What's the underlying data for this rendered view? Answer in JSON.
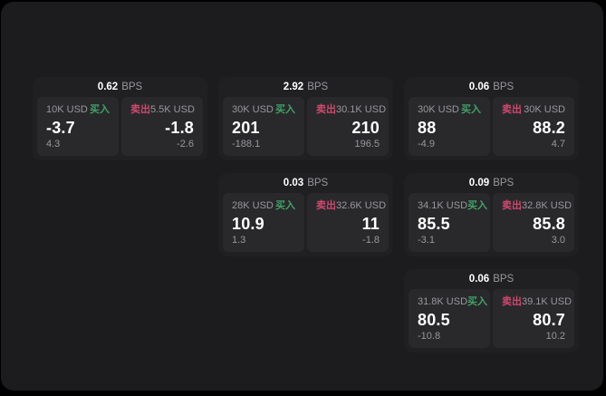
{
  "theme": {
    "outer_bg": "#000000",
    "page_bg": "#1c1c1e",
    "card_bg": "#202022",
    "panel_bg": "#29292b",
    "text_white": "#ffffff",
    "text_muted": "#98989d",
    "buy_color": "#3fa266",
    "sell_color": "#d0486c"
  },
  "labels": {
    "bps": "BPS",
    "buy": "买入",
    "sell": "卖出"
  },
  "cards": [
    {
      "grid": "r1c1",
      "bps": "0.62",
      "buy": {
        "size": "10K USD",
        "value": "-3.7",
        "sub": "4.3"
      },
      "sell": {
        "size": "5.5K USD",
        "value": "-1.8",
        "sub": "-2.6"
      }
    },
    {
      "grid": "r1c2",
      "bps": "2.92",
      "buy": {
        "size": "30K USD",
        "value": "201",
        "sub": "-188.1"
      },
      "sell": {
        "size": "30.1K USD",
        "value": "210",
        "sub": "196.5"
      }
    },
    {
      "grid": "r1c3",
      "bps": "0.06",
      "buy": {
        "size": "30K USD",
        "value": "88",
        "sub": "-4.9"
      },
      "sell": {
        "size": "30K USD",
        "value": "88.2",
        "sub": "4.7"
      }
    },
    {
      "grid": "r2c2",
      "bps": "0.03",
      "buy": {
        "size": "28K USD",
        "value": "10.9",
        "sub": "1.3"
      },
      "sell": {
        "size": "32.6K USD",
        "value": "11",
        "sub": "-1.8"
      }
    },
    {
      "grid": "r2c3",
      "bps": "0.09",
      "buy": {
        "size": "34.1K USD",
        "value": "85.5",
        "sub": "-3.1"
      },
      "sell": {
        "size": "32.8K USD",
        "value": "85.8",
        "sub": "3.0"
      }
    },
    {
      "grid": "r3c3",
      "bps": "0.06",
      "buy": {
        "size": "31.8K USD",
        "value": "80.5",
        "sub": "-10.8"
      },
      "sell": {
        "size": "39.1K USD",
        "value": "80.7",
        "sub": "10.2"
      }
    }
  ]
}
